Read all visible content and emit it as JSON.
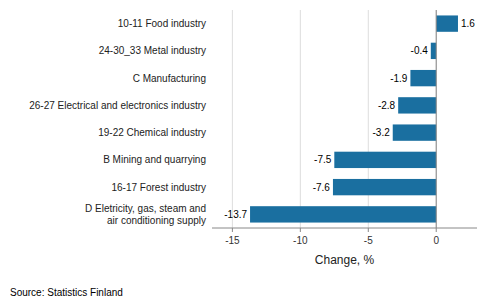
{
  "chart_data": {
    "type": "bar",
    "orientation": "horizontal",
    "categories": [
      "D Eletricity, gas, steam and\nair conditioning supply",
      "16-17 Forest industry",
      "B Mining and quarrying",
      "19-22 Chemical industry",
      "26-27 Electrical and electronics industry",
      "C Manufacturing",
      "24-30_33 Metal industry",
      "10-11 Food industry"
    ],
    "values": [
      -13.7,
      -7.6,
      -7.5,
      -3.2,
      -2.8,
      -1.9,
      -0.4,
      1.6
    ],
    "color": "#1a6fa0",
    "xlabel": "Change, %",
    "xlim": [
      -16.5,
      3.0
    ],
    "xticks": [
      -15,
      -10,
      -5,
      0
    ],
    "grid": true,
    "data_labels": true,
    "annotations": [
      "Source: Statistics Finland"
    ]
  }
}
